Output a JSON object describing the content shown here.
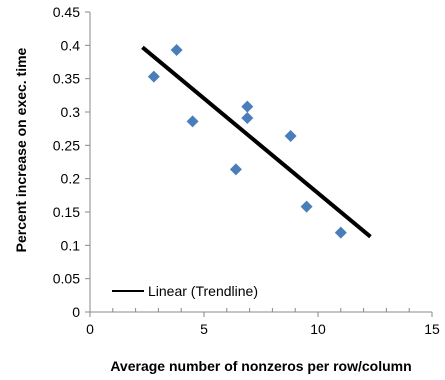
{
  "chart_data": {
    "type": "scatter",
    "title": "",
    "xlabel": "Average number of nonzeros per row/column",
    "ylabel": "Percent increase on exec. time",
    "xlim": [
      0,
      15
    ],
    "ylim": [
      0,
      0.45
    ],
    "x_ticks": [
      0,
      5,
      10,
      15
    ],
    "x_tick_labels": [
      "0",
      "5",
      "10",
      "15"
    ],
    "x_minor_step": 1,
    "y_ticks": [
      0,
      0.05,
      0.1,
      0.15,
      0.2,
      0.25,
      0.3,
      0.35,
      0.4,
      0.45
    ],
    "y_tick_labels": [
      "0",
      "0.05",
      "0.1",
      "0.15",
      "0.2",
      "0.25",
      "0.3",
      "0.35",
      "0.4",
      "0.45"
    ],
    "grid": false,
    "legend_position": "bottom-left",
    "series": [
      {
        "marker": "diamond",
        "color": "#4a7ebb",
        "points": [
          {
            "x": 2.8,
            "y": 0.353
          },
          {
            "x": 3.8,
            "y": 0.393
          },
          {
            "x": 4.5,
            "y": 0.286
          },
          {
            "x": 6.4,
            "y": 0.214
          },
          {
            "x": 6.9,
            "y": 0.308
          },
          {
            "x": 6.9,
            "y": 0.291
          },
          {
            "x": 8.8,
            "y": 0.264
          },
          {
            "x": 9.5,
            "y": 0.158
          },
          {
            "x": 11.0,
            "y": 0.119
          }
        ]
      }
    ],
    "trendline": {
      "name": "Linear (Trendline)",
      "color": "#000000",
      "from": {
        "x": 2.3,
        "y": 0.397
      },
      "to": {
        "x": 12.3,
        "y": 0.113
      }
    }
  }
}
